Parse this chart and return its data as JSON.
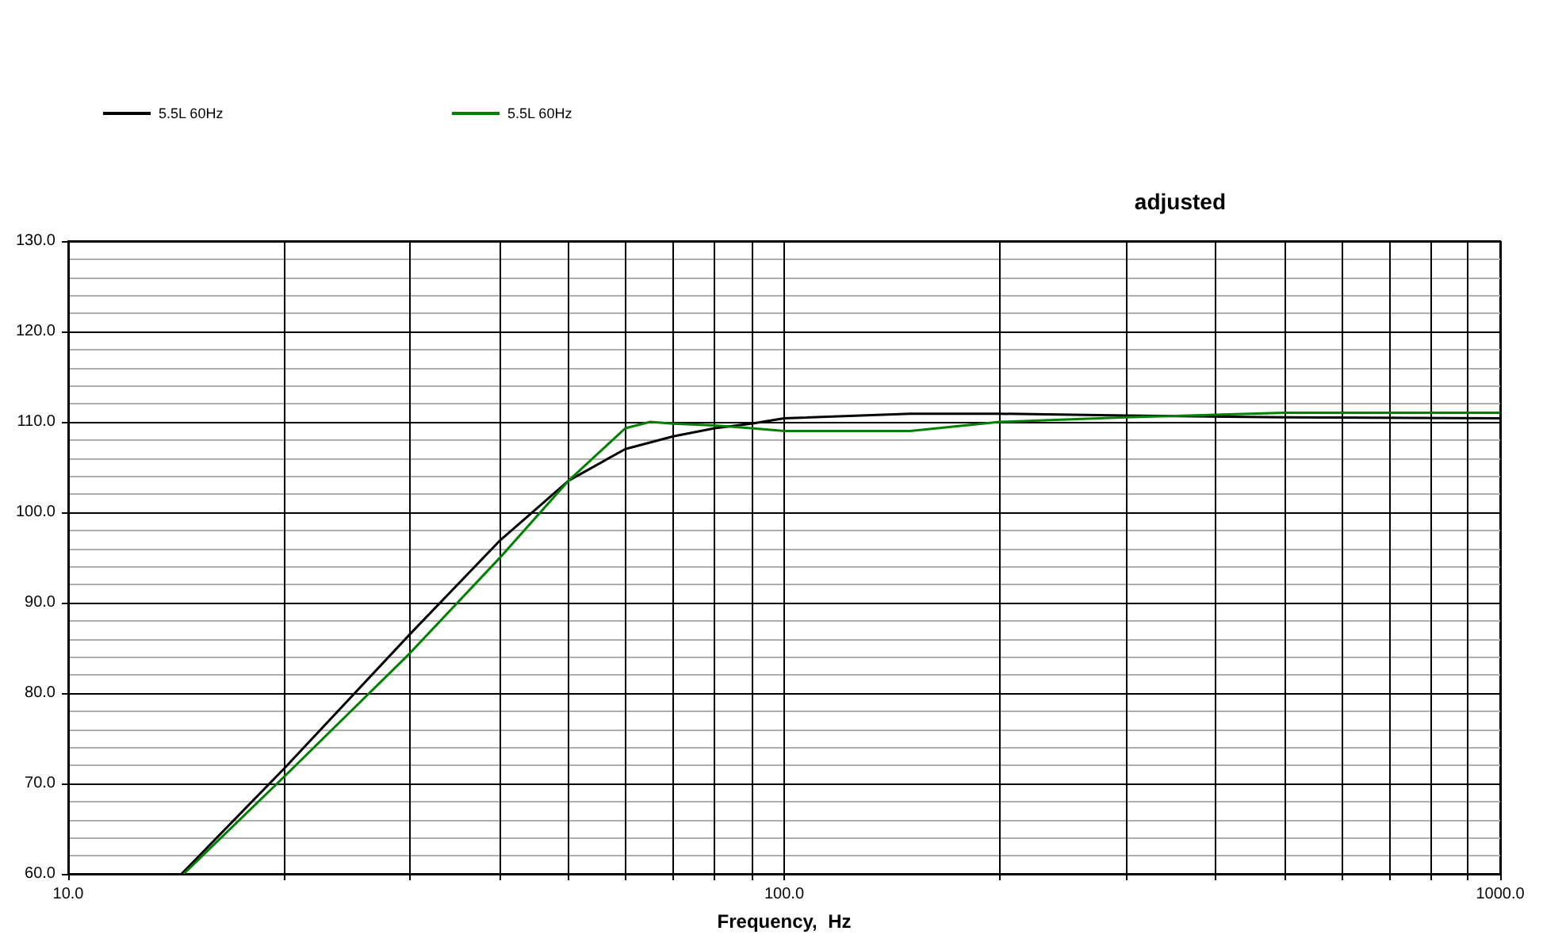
{
  "chart_data": {
    "type": "line",
    "title": "adjusted",
    "xlabel": "Frequency,  Hz",
    "log": "x",
    "grid": true,
    "legend": "top left",
    "marker": "none",
    "line_style": "solid",
    "xlim": [
      10,
      1000
    ],
    "xticks": [
      {
        "value": 10,
        "label": "10.0"
      },
      {
        "value": 20,
        "label": null
      },
      {
        "value": 30,
        "label": null
      },
      {
        "value": 40,
        "label": null
      },
      {
        "value": 50,
        "label": null
      },
      {
        "value": 60,
        "label": null
      },
      {
        "value": 70,
        "label": null
      },
      {
        "value": 80,
        "label": null
      },
      {
        "value": 90,
        "label": null
      },
      {
        "value": 100,
        "label": "100.0"
      },
      {
        "value": 200,
        "label": null
      },
      {
        "value": 300,
        "label": null
      },
      {
        "value": 400,
        "label": null
      },
      {
        "value": 500,
        "label": null
      },
      {
        "value": 600,
        "label": null
      },
      {
        "value": 700,
        "label": null
      },
      {
        "value": 800,
        "label": null
      },
      {
        "value": 900,
        "label": null
      },
      {
        "value": 1000,
        "label": "1000.0"
      }
    ],
    "ylim": [
      60,
      130
    ],
    "yticks": [
      {
        "value": 60,
        "label": "60.0"
      },
      {
        "value": 70,
        "label": "70.0"
      },
      {
        "value": 80,
        "label": "80.0"
      },
      {
        "value": 90,
        "label": "90.0"
      },
      {
        "value": 100,
        "label": "100.0"
      },
      {
        "value": 110,
        "label": "110.0"
      },
      {
        "value": 120,
        "label": "120.0"
      },
      {
        "value": 130,
        "label": "130.0"
      }
    ],
    "series": [
      {
        "name": "5.5L 60Hz",
        "color": "#000000",
        "x": [
          14.4,
          20,
          30,
          40,
          50,
          60,
          70,
          80,
          90,
          100,
          150,
          200,
          300,
          500,
          1000
        ],
        "values": [
          60,
          71.6,
          86.5,
          96.8,
          103.5,
          107,
          108.4,
          109.3,
          109.8,
          110.4,
          110.9,
          110.9,
          110.7,
          110.5,
          110.4
        ]
      },
      {
        "name": "5.5L 60Hz",
        "color": "#008000",
        "x": [
          14.5,
          20,
          30,
          40,
          50,
          60,
          65,
          70,
          80,
          90,
          100,
          150,
          200,
          300,
          500,
          1000
        ],
        "values": [
          60,
          70.7,
          84.4,
          94.9,
          103.5,
          109.3,
          110,
          109.8,
          109.6,
          109.3,
          109,
          109,
          110,
          110.5,
          111,
          111
        ]
      }
    ]
  }
}
